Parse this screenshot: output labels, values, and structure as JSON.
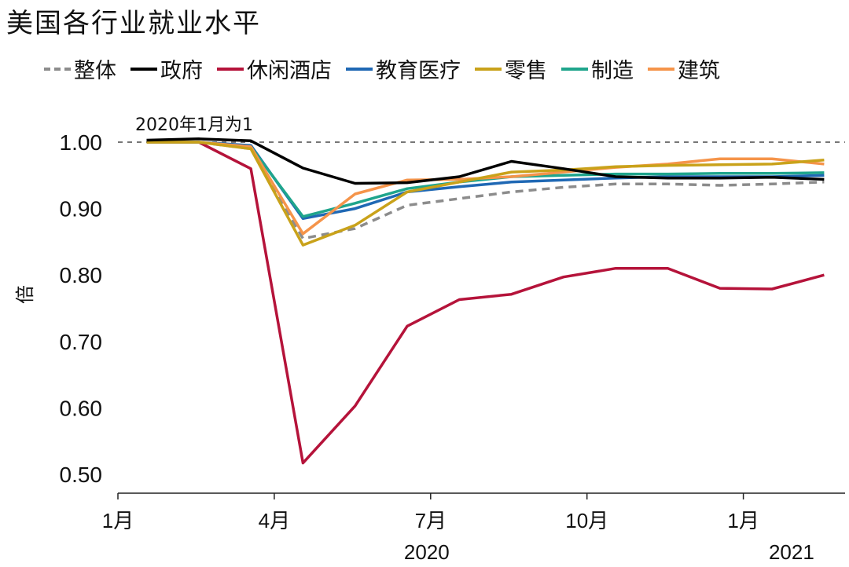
{
  "title": "美国各行业就业水平",
  "chart_data": {
    "type": "line",
    "title": "美国各行业就业水平",
    "annotation": "2020年1月为1",
    "ylabel": "倍",
    "ylim": [
      0.48,
      1.04
    ],
    "yticks": [
      "0.50",
      "0.60",
      "0.70",
      "0.80",
      "0.90",
      "1.00"
    ],
    "ytick_values": [
      0.5,
      0.6,
      0.7,
      0.8,
      0.9,
      1.0
    ],
    "xticks": [
      "1月",
      "4月",
      "7月",
      "10月",
      "1月"
    ],
    "xtick_months": [
      0,
      3,
      6,
      9,
      12
    ],
    "years": [
      {
        "label": "2020",
        "month": 6
      },
      {
        "label": "2021",
        "month": 13
      }
    ],
    "x": [
      "2020-01",
      "2020-02",
      "2020-03",
      "2020-04",
      "2020-05",
      "2020-06",
      "2020-07",
      "2020-08",
      "2020-09",
      "2020-10",
      "2020-11",
      "2020-12",
      "2021-01",
      "2021-02"
    ],
    "reference_line": 1.0,
    "series": [
      {
        "name": "整体",
        "color": "#8c8c8c",
        "dashed": true,
        "values": [
          1.0,
          1.0,
          0.99,
          0.855,
          0.87,
          0.905,
          0.915,
          0.925,
          0.932,
          0.937,
          0.937,
          0.935,
          0.937,
          0.94
        ]
      },
      {
        "name": "政府",
        "color": "#000000",
        "values": [
          1.003,
          1.005,
          1.002,
          0.961,
          0.938,
          0.939,
          0.948,
          0.971,
          0.96,
          0.948,
          0.946,
          0.946,
          0.947,
          0.944
        ]
      },
      {
        "name": "休闲酒店",
        "color": "#b5133a",
        "values": [
          1.0,
          1.0,
          0.96,
          0.517,
          0.603,
          0.723,
          0.763,
          0.771,
          0.797,
          0.81,
          0.81,
          0.78,
          0.779,
          0.8
        ]
      },
      {
        "name": "教育医疗",
        "color": "#1f68b4",
        "values": [
          1.0,
          1.0,
          0.995,
          0.885,
          0.9,
          0.925,
          0.933,
          0.94,
          0.943,
          0.946,
          0.948,
          0.948,
          0.948,
          0.95
        ]
      },
      {
        "name": "零售",
        "color": "#c9a21a",
        "values": [
          1.0,
          1.0,
          0.99,
          0.845,
          0.875,
          0.925,
          0.94,
          0.955,
          0.958,
          0.963,
          0.965,
          0.966,
          0.967,
          0.973
        ]
      },
      {
        "name": "制造",
        "color": "#1fa58c",
        "values": [
          1.0,
          1.0,
          0.993,
          0.888,
          0.908,
          0.93,
          0.94,
          0.948,
          0.95,
          0.952,
          0.952,
          0.953,
          0.953,
          0.954
        ]
      },
      {
        "name": "建筑",
        "color": "#f5944a",
        "values": [
          1.0,
          1.0,
          0.993,
          0.862,
          0.922,
          0.943,
          0.944,
          0.948,
          0.955,
          0.962,
          0.967,
          0.975,
          0.975,
          0.967
        ]
      }
    ]
  }
}
